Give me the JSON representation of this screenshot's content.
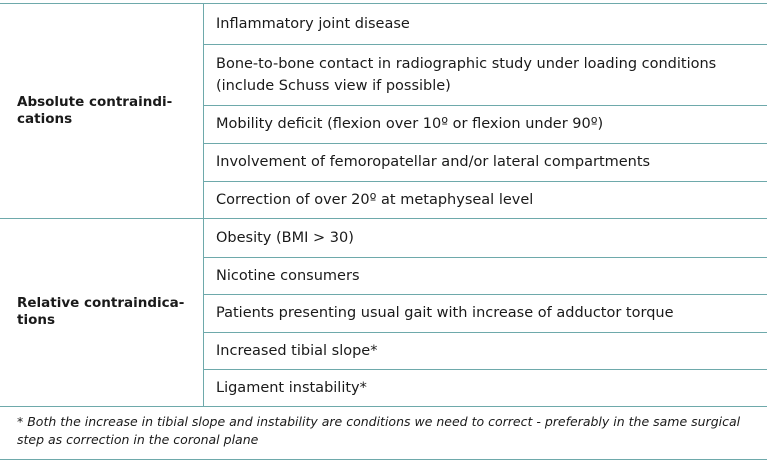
{
  "table": {
    "groups": [
      {
        "label": [
          "Absolute contraindi-",
          "cations"
        ],
        "items": [
          "Inflammatory joint disease",
          "Bone-to-bone contact in radiographic study under loading conditions (include Schuss view if possible)",
          "Mobility deficit (flexion over 10º or flexion under 90º)",
          "Involvement of femoropatellar and/or lateral compartments",
          "Correction of over 20º at metaphyseal level"
        ]
      },
      {
        "label": [
          "Relative contraindica-",
          "tions"
        ],
        "items": [
          "Obesity (BMI > 30)",
          "Nicotine consumers",
          "Patients presenting usual gait with increase of adductor torque",
          "Increased tibial slope*",
          "Ligament instability*"
        ]
      }
    ],
    "footnote": "* Both the increase in tibial slope and instability are conditions we need to correct - preferably in the same surgical step as correction in the coronal plane"
  }
}
